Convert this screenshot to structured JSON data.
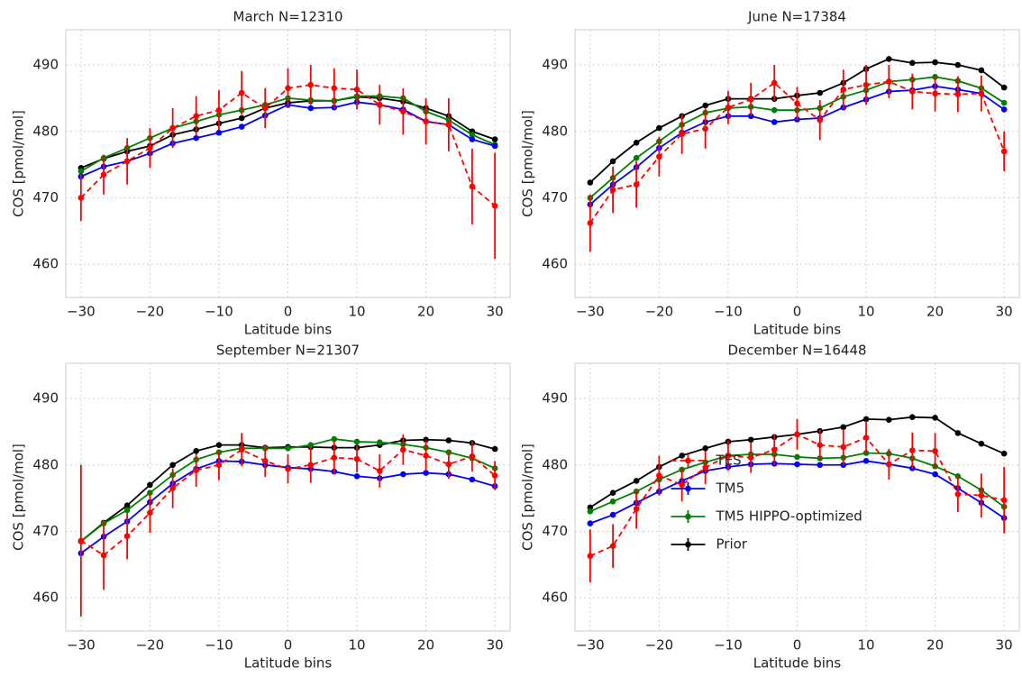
{
  "chart_data": [
    {
      "type": "line",
      "title": "March N=12310",
      "xlabel": "Latitude bins",
      "ylabel": "COS [pmol/mol]",
      "x": [
        -30,
        -26.7,
        -23.3,
        -20,
        -16.7,
        -13.3,
        -10,
        -6.7,
        -3.3,
        0,
        3.3,
        6.7,
        10,
        13.3,
        16.7,
        20,
        23.3,
        26.7,
        30
      ],
      "series": [
        {
          "color": "#000000",
          "values": [
            474.5,
            475.9,
            477,
            477.8,
            479.5,
            480.3,
            481.2,
            482,
            483.5,
            484.3,
            484.6,
            484.6,
            485.2,
            485,
            484.5,
            483.5,
            482.3,
            480,
            478.8
          ]
        },
        {
          "color": "#008000",
          "values": [
            474,
            476,
            477.5,
            479,
            480.5,
            481.5,
            482.5,
            483.2,
            484,
            485,
            484.7,
            484.6,
            485.3,
            485.3,
            485,
            483,
            481.7,
            479.5,
            478
          ]
        },
        {
          "color": "#0000ff",
          "values": [
            473.2,
            474.7,
            475.5,
            476.7,
            478.2,
            479,
            479.8,
            480.7,
            482.4,
            484,
            483.5,
            483.6,
            484.4,
            484,
            483.3,
            481.5,
            481,
            478.8,
            477.8
          ]
        },
        {
          "color": "#ff0000",
          "linestyle": "dashed",
          "values": [
            470,
            473.5,
            475.5,
            477.5,
            480.5,
            482.3,
            483.2,
            485.8,
            483.5,
            486.5,
            487,
            486.5,
            486.3,
            484,
            483,
            481.5,
            481,
            471.7,
            468.8
          ],
          "errors": [
            3.5,
            3,
            3.5,
            3,
            3,
            3,
            3,
            3.3,
            3,
            3,
            3,
            3,
            3,
            3,
            3.5,
            3.5,
            4,
            5.7,
            8
          ]
        }
      ],
      "xlim": [
        -32.2,
        32.2
      ],
      "ylim": [
        455,
        495.3
      ],
      "xticks": [
        {
          "value": -30,
          "label": "−30"
        },
        {
          "value": -20,
          "label": "−20"
        },
        {
          "value": -10,
          "label": "−10"
        },
        0,
        10,
        20,
        30
      ],
      "yticks": [
        460,
        470,
        480,
        490
      ],
      "grid": true
    },
    {
      "type": "line",
      "title": "June N=17384",
      "xlabel": "Latitude bins",
      "ylabel": "COS [pmol/mol]",
      "x": [
        -30,
        -26.7,
        -23.3,
        -20,
        -16.7,
        -13.3,
        -10,
        -6.7,
        -3.3,
        0,
        3.3,
        6.7,
        10,
        13.3,
        16.7,
        20,
        23.3,
        26.7,
        30
      ],
      "series": [
        {
          "color": "#000000",
          "values": [
            472.3,
            475.5,
            478.3,
            480.5,
            482.3,
            483.9,
            484.9,
            484.9,
            484.9,
            485.4,
            485.8,
            487.3,
            489.4,
            490.9,
            490.3,
            490.4,
            490,
            489.2,
            486.6
          ]
        },
        {
          "color": "#008000",
          "values": [
            470,
            473,
            476,
            478.5,
            481,
            482.8,
            483.5,
            483.7,
            483.2,
            483.2,
            483.5,
            485.2,
            486.2,
            487.5,
            487.8,
            488.2,
            487.6,
            486.5,
            484.3
          ]
        },
        {
          "color": "#0000ff",
          "values": [
            469,
            472,
            474.6,
            477.5,
            479.8,
            481.4,
            482.3,
            482.3,
            481.4,
            481.8,
            482,
            483.6,
            484.8,
            486,
            486.2,
            486.8,
            486.3,
            485.7,
            483.3
          ]
        },
        {
          "color": "#ff0000",
          "linestyle": "dashed",
          "values": [
            466.2,
            471.2,
            472,
            476.2,
            479.6,
            480.4,
            483.6,
            484.8,
            487.3,
            484.2,
            481.7,
            486.3,
            487,
            487.5,
            486,
            485.7,
            485.6,
            485.7,
            477
          ],
          "errors": [
            4.3,
            3.5,
            3.5,
            3,
            3,
            3,
            2.5,
            2.5,
            2.7,
            2.5,
            3,
            3,
            3,
            2.5,
            2.7,
            2.7,
            2.7,
            2.7,
            3
          ]
        }
      ],
      "xlim": [
        -32.2,
        32.2
      ],
      "ylim": [
        455,
        495.3
      ],
      "xticks": [
        {
          "value": -30,
          "label": "−30"
        },
        {
          "value": -20,
          "label": "−20"
        },
        {
          "value": -10,
          "label": "−10"
        },
        0,
        10,
        20,
        30
      ],
      "yticks": [
        460,
        470,
        480,
        490
      ],
      "grid": true
    },
    {
      "type": "line",
      "title": "September N=21307",
      "xlabel": "Latitude bins",
      "ylabel": "COS [pmol/mol]",
      "x": [
        -30,
        -26.7,
        -23.3,
        -20,
        -16.7,
        -13.3,
        -10,
        -6.7,
        -3.3,
        0,
        3.3,
        6.7,
        10,
        13.3,
        16.7,
        20,
        23.3,
        26.7,
        30
      ],
      "series": [
        {
          "color": "#000000",
          "values": [
            468.5,
            471.3,
            473.9,
            477,
            480,
            482.1,
            483,
            483,
            482.6,
            482.7,
            482.7,
            482.6,
            482.6,
            483,
            483.7,
            483.8,
            483.7,
            483.3,
            482.4
          ]
        },
        {
          "color": "#008000",
          "values": [
            468.5,
            471.2,
            473.2,
            475.8,
            478.5,
            480.8,
            481.9,
            482.5,
            482.5,
            482.5,
            483,
            483.9,
            483.5,
            483.4,
            483.1,
            482.6,
            481.9,
            481,
            479.5
          ]
        },
        {
          "color": "#0000ff",
          "values": [
            466.7,
            469.2,
            471.5,
            474.4,
            477.2,
            479.4,
            480.6,
            480.5,
            480,
            479.6,
            479.4,
            479,
            478.3,
            478,
            478.6,
            478.8,
            478.6,
            477.8,
            476.8
          ]
        },
        {
          "color": "#ff0000",
          "linestyle": "dashed",
          "values": [
            468.6,
            466.4,
            469.3,
            472.8,
            476.5,
            479.2,
            480,
            482.3,
            480.6,
            479.4,
            480,
            481.1,
            480.9,
            479.1,
            482.3,
            481.4,
            480.1,
            481.3,
            478.4
          ],
          "errors": [
            11.4,
            5.2,
            3.5,
            3,
            3,
            2.5,
            2.3,
            2.5,
            2.4,
            2.2,
            2.7,
            2.5,
            2,
            2.5,
            2.3,
            2.3,
            2.2,
            2.3,
            2.2
          ]
        }
      ],
      "xlim": [
        -32.2,
        32.2
      ],
      "ylim": [
        455,
        495.3
      ],
      "xticks": [
        {
          "value": -30,
          "label": "−30"
        },
        {
          "value": -20,
          "label": "−20"
        },
        {
          "value": -10,
          "label": "−10"
        },
        0,
        10,
        20,
        30
      ],
      "yticks": [
        460,
        470,
        480,
        490
      ],
      "grid": true
    },
    {
      "type": "line",
      "title": "December N=16448",
      "xlabel": "Latitude bins",
      "ylabel": "COS [pmol/mol]",
      "x": [
        -30,
        -26.7,
        -23.3,
        -20,
        -16.7,
        -13.3,
        -10,
        -6.7,
        -3.3,
        0,
        3.3,
        6.7,
        10,
        13.3,
        16.7,
        20,
        23.3,
        26.7,
        30
      ],
      "series": [
        {
          "name": "Prior",
          "color": "#000000",
          "values": [
            473.6,
            475.8,
            477.6,
            479.7,
            481.4,
            482.5,
            483.5,
            483.8,
            484.2,
            484.6,
            485.1,
            485.7,
            486.9,
            486.8,
            487.2,
            487.1,
            484.8,
            483.2,
            481.7
          ]
        },
        {
          "name": "TM5 HIPPO-optimized",
          "color": "#008000",
          "values": [
            473,
            474.5,
            476,
            477.8,
            479.3,
            480.4,
            481.4,
            481.6,
            481.6,
            481.2,
            481,
            481.1,
            481.8,
            481.7,
            481,
            479.8,
            478.3,
            476.2,
            473.7
          ]
        },
        {
          "name": "TM5",
          "color": "#0000ff",
          "values": [
            471.2,
            472.5,
            474.3,
            476,
            477.6,
            479.1,
            479.7,
            480.1,
            480.2,
            480.1,
            480,
            480,
            480.6,
            480.1,
            479.5,
            478.6,
            476.5,
            474.3,
            472
          ]
        },
        {
          "name": "TES",
          "color": "#ff0000",
          "linestyle": "dashed",
          "values": [
            466.3,
            467.8,
            473.4,
            478.4,
            477,
            479.6,
            481.4,
            481.1,
            482.3,
            484.6,
            483,
            482.7,
            484.1,
            480.1,
            482.2,
            482.1,
            475.6,
            475.4,
            474.7
          ],
          "errors": [
            4,
            3.3,
            3,
            3,
            2.5,
            2.5,
            2.3,
            2.3,
            2.3,
            2.3,
            2.3,
            2.7,
            2.5,
            2.3,
            2.7,
            2.7,
            2.7,
            3.3,
            5
          ]
        }
      ],
      "xlim": [
        -32.2,
        32.2
      ],
      "ylim": [
        455,
        495.3
      ],
      "xticks": [
        {
          "value": -30,
          "label": "−30"
        },
        {
          "value": -20,
          "label": "−20"
        },
        {
          "value": -10,
          "label": "−10"
        },
        0,
        10,
        20,
        30
      ],
      "yticks": [
        460,
        470,
        480,
        490
      ],
      "grid": true,
      "legend": "lower center"
    }
  ]
}
